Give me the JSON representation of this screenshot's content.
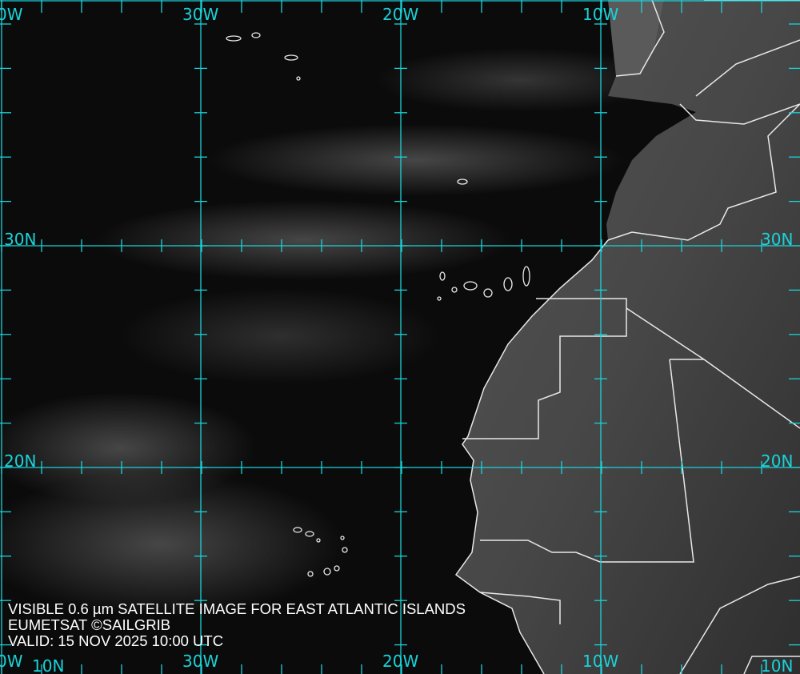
{
  "caption": {
    "line1": "VISIBLE 0.6 µm SATELLITE IMAGE FOR EAST ATLANTIC ISLANDS",
    "line2": "EUMETSAT ©SAILGRIB",
    "line3": "VALID:  15 NOV 2025 10:00 UTC"
  },
  "grid": {
    "color": "#19d3d9",
    "top_labels": [
      "0W",
      "30W",
      "20W",
      "10W"
    ],
    "bottom_labels": [
      "0W",
      "30W",
      "20W",
      "10W",
      "10N"
    ],
    "left_labels": [
      "30N",
      "20N",
      "10N"
    ],
    "right_labels": [
      "30N",
      "20N"
    ]
  },
  "colors": {
    "ocean": "#0b0b0b",
    "land": "#4a4a4a",
    "borders": "#e8e8e8",
    "clouds": "#6a6a6a"
  }
}
